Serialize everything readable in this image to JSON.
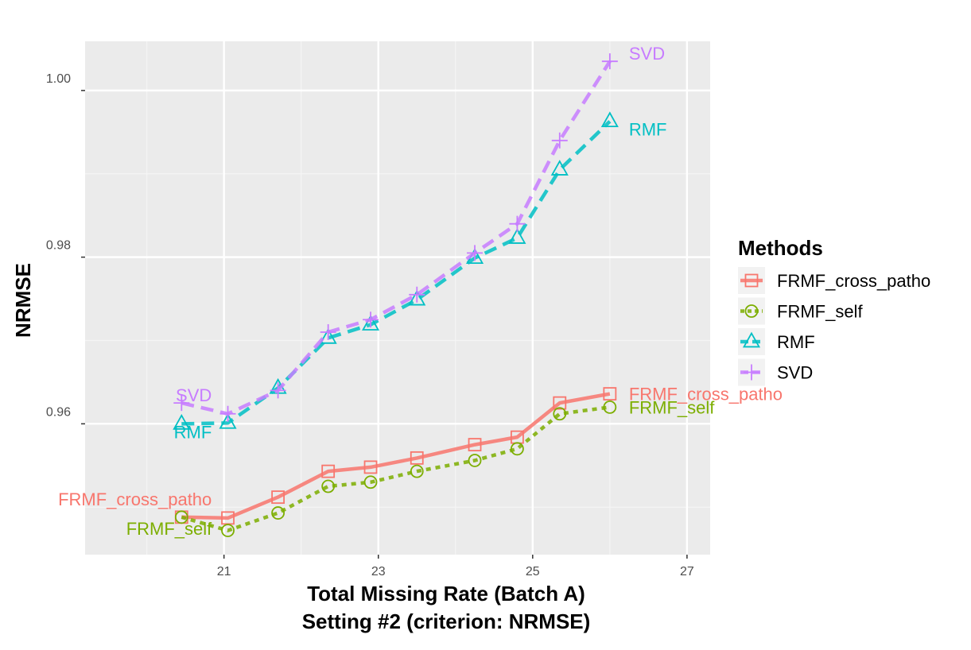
{
  "chart_data": {
    "type": "line",
    "xlabel": "Total Missing Rate (Batch A)",
    "subtitle": "Setting #2 (criterion: NRMSE)",
    "ylabel": "NRMSE",
    "xlim": [
      19.2,
      27.3
    ],
    "ylim": [
      0.9443,
      1.0059
    ],
    "x_ticks": [
      21,
      23,
      25,
      27
    ],
    "x_tick_labels": [
      "21",
      "23",
      "25",
      "27"
    ],
    "y_ticks": [
      0.96,
      0.98,
      1.0
    ],
    "y_tick_labels": [
      "0.96",
      "0.98",
      "1.00"
    ],
    "grid": true,
    "legend": {
      "title": "Methods",
      "position": "right"
    },
    "x": [
      20.45,
      21.05,
      21.7,
      22.35,
      22.9,
      23.5,
      24.25,
      24.8,
      25.35,
      26.0
    ],
    "series": [
      {
        "name": "FRMF_cross_patho",
        "color": "#F8766D",
        "line_style": "solid",
        "marker": "square",
        "values": [
          0.9488,
          0.9487,
          0.9512,
          0.9543,
          0.9548,
          0.9559,
          0.9575,
          0.9584,
          0.9625,
          0.9636
        ],
        "start_label": "FRMF_cross_patho",
        "end_label": "FRMF_cross_patho"
      },
      {
        "name": "FRMF_self",
        "color": "#7CAE00",
        "line_style": "dotted",
        "marker": "circle",
        "values": [
          0.9488,
          0.9472,
          0.9493,
          0.9525,
          0.953,
          0.9543,
          0.9556,
          0.957,
          0.9612,
          0.962
        ],
        "start_label": "FRMF_self",
        "end_label": "FRMF_self"
      },
      {
        "name": "RMF",
        "color": "#00BFC4",
        "line_style": "dashed",
        "marker": "triangle",
        "values": [
          0.96,
          0.9601,
          0.9643,
          0.9703,
          0.9719,
          0.9749,
          0.9799,
          0.9823,
          0.9905,
          0.9963
        ],
        "start_label": "RMF",
        "end_label": "RMF"
      },
      {
        "name": "SVD",
        "color": "#C77CFF",
        "line_style": "dashed",
        "marker": "plus",
        "values": [
          0.9625,
          0.9612,
          0.964,
          0.971,
          0.9725,
          0.9755,
          0.9805,
          0.984,
          0.994,
          1.0035
        ],
        "start_label": "SVD",
        "end_label": "SVD"
      }
    ]
  }
}
